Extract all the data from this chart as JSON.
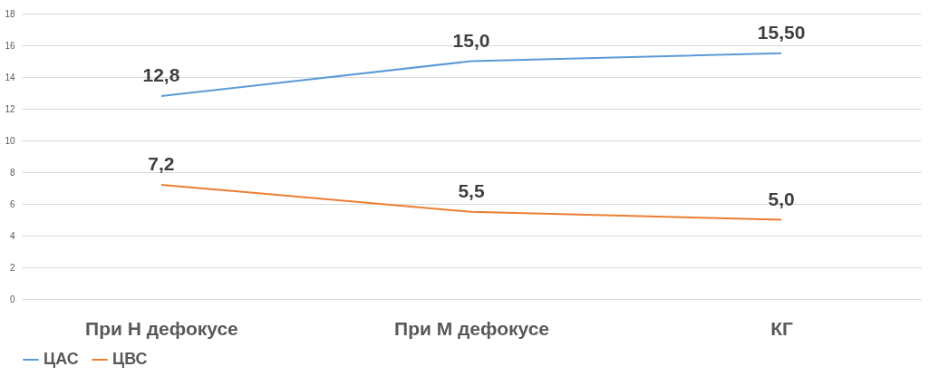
{
  "chart_data": {
    "type": "line",
    "categories": [
      "При Н дефокусе",
      "При М дефокусе",
      "КГ"
    ],
    "series": [
      {
        "name": "ЦАС",
        "color": "#5b9bd5",
        "values": [
          12.8,
          15.0,
          15.5
        ],
        "value_labels": [
          "12,8",
          "15,0",
          "15,50"
        ]
      },
      {
        "name": "ЦВС",
        "color": "#ed7d31",
        "values": [
          7.2,
          5.5,
          5.0
        ],
        "value_labels": [
          "7,2",
          "5,5",
          "5,0"
        ]
      }
    ],
    "ylim": [
      0,
      18
    ],
    "yticks": [
      0,
      2,
      4,
      6,
      8,
      10,
      12,
      14,
      16,
      18
    ],
    "grid": "y",
    "legend": "bottom"
  }
}
